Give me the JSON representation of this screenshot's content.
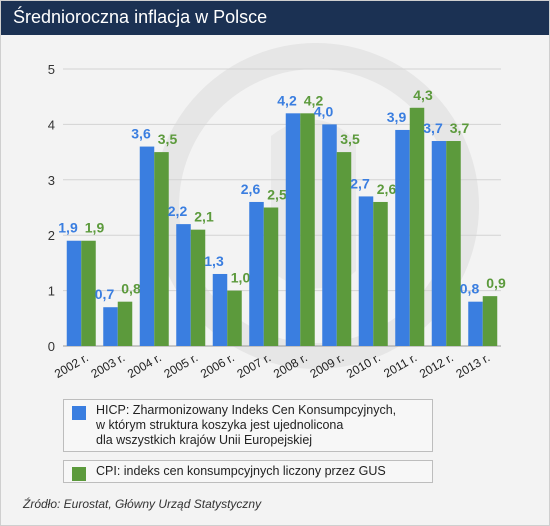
{
  "title": "Średnioroczna inflacja w Polsce",
  "source": "Źródło: Eurostat, Główny Urząd Statystyczny",
  "colors": {
    "hicp": "#3a7ee0",
    "cpi": "#5c9a3c",
    "title_bg": "#1b3153"
  },
  "chart_data": {
    "type": "bar",
    "categories": [
      "2002 r.",
      "2003 r.",
      "2004 r.",
      "2005 r.",
      "2006 r.",
      "2007 r.",
      "2008 r.",
      "2009 r.",
      "2010 r.",
      "2011 r.",
      "2012 r.",
      "2013 r."
    ],
    "series": [
      {
        "name": "HICP: Zharmonizowany Indeks Cen Konsumpcyjnych,\nw którym struktura koszyka jest ujednolicona\ndla wszystkich krajów Unii Europejskiej",
        "values": [
          1.9,
          0.7,
          3.6,
          2.2,
          1.3,
          2.6,
          4.2,
          4.0,
          2.7,
          3.9,
          3.7,
          0.8
        ],
        "labels": [
          "1,9",
          "0,7",
          "3,6",
          "2,2",
          "1,3",
          "2,6",
          "4,2",
          "4,0",
          "2,7",
          "3,9",
          "3,7",
          "0,8"
        ],
        "color": "#3a7ee0"
      },
      {
        "name": "CPI: indeks cen konsumpcyjnych liczony przez GUS",
        "values": [
          1.9,
          0.8,
          3.5,
          2.1,
          1.0,
          2.5,
          4.2,
          3.5,
          2.6,
          4.3,
          3.7,
          0.9
        ],
        "labels": [
          "1,9",
          "0,8",
          "3,5",
          "2,1",
          "1,0",
          "2,5",
          "4,2",
          "3,5",
          "2,6",
          "4,3",
          "3,7",
          "0,9"
        ],
        "color": "#5c9a3c"
      }
    ],
    "yticks": [
      "0",
      "1",
      "2",
      "3",
      "4",
      "5"
    ],
    "ylim": [
      0,
      5
    ],
    "grid": true,
    "legend_position": "bottom"
  }
}
